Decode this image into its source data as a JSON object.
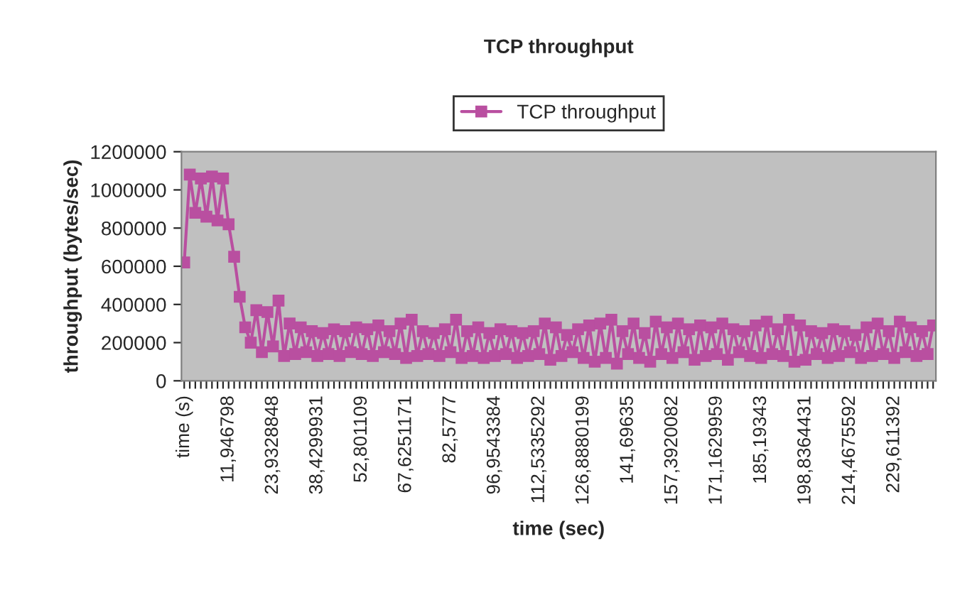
{
  "chart_data": {
    "type": "line",
    "title": "TCP throughput",
    "xlabel": "time (sec)",
    "ylabel": "throughput (bytes/sec)",
    "categories": [
      "time (s)",
      null,
      null,
      null,
      null,
      null,
      null,
      null,
      "11,946798",
      null,
      null,
      null,
      null,
      null,
      null,
      null,
      "23,9328848",
      null,
      null,
      null,
      null,
      null,
      null,
      null,
      "38,4299931",
      null,
      null,
      null,
      null,
      null,
      null,
      null,
      "52,801109",
      null,
      null,
      null,
      null,
      null,
      null,
      null,
      "67,6251171",
      null,
      null,
      null,
      null,
      null,
      null,
      null,
      "82,5777",
      null,
      null,
      null,
      null,
      null,
      null,
      null,
      "96,9543384",
      null,
      null,
      null,
      null,
      null,
      null,
      null,
      "112,5335292",
      null,
      null,
      null,
      null,
      null,
      null,
      null,
      "126,8880199",
      null,
      null,
      null,
      null,
      null,
      null,
      null,
      "141,69635",
      null,
      null,
      null,
      null,
      null,
      null,
      null,
      "157,3920082",
      null,
      null,
      null,
      null,
      null,
      null,
      null,
      "171,1629959",
      null,
      null,
      null,
      null,
      null,
      null,
      null,
      "185,19343",
      null,
      null,
      null,
      null,
      null,
      null,
      null,
      "198,8364431",
      null,
      null,
      null,
      null,
      null,
      null,
      null,
      "214,4675592",
      null,
      null,
      null,
      null,
      null,
      null,
      null,
      "229,611392",
      null,
      null,
      null,
      null,
      null,
      null,
      null
    ],
    "series": [
      {
        "name": "TCP throughput",
        "color": "#b94fa0",
        "values": [
          620000,
          1080000,
          880000,
          1060000,
          860000,
          1070000,
          840000,
          1060000,
          820000,
          650000,
          440000,
          280000,
          200000,
          370000,
          150000,
          360000,
          180000,
          420000,
          130000,
          300000,
          140000,
          280000,
          150000,
          260000,
          130000,
          250000,
          140000,
          270000,
          130000,
          260000,
          150000,
          280000,
          140000,
          270000,
          130000,
          290000,
          150000,
          260000,
          140000,
          300000,
          120000,
          320000,
          130000,
          260000,
          140000,
          250000,
          130000,
          270000,
          150000,
          320000,
          120000,
          260000,
          130000,
          280000,
          120000,
          250000,
          130000,
          270000,
          140000,
          260000,
          120000,
          250000,
          130000,
          260000,
          140000,
          300000,
          110000,
          280000,
          130000,
          240000,
          150000,
          270000,
          120000,
          290000,
          100000,
          300000,
          120000,
          320000,
          90000,
          260000,
          140000,
          300000,
          120000,
          250000,
          100000,
          310000,
          140000,
          280000,
          120000,
          300000,
          150000,
          270000,
          110000,
          290000,
          130000,
          280000,
          140000,
          300000,
          110000,
          270000,
          150000,
          260000,
          130000,
          290000,
          120000,
          310000,
          140000,
          270000,
          130000,
          320000,
          100000,
          290000,
          110000,
          260000,
          140000,
          250000,
          120000,
          270000,
          130000,
          260000,
          150000,
          240000,
          120000,
          280000,
          130000,
          300000,
          140000,
          260000,
          120000,
          310000,
          150000,
          280000,
          130000,
          260000,
          140000,
          290000
        ]
      }
    ],
    "ylim": [
      0,
      1200000
    ],
    "yticks": [
      0,
      200000,
      400000,
      600000,
      800000,
      1000000,
      1200000
    ],
    "grid": false,
    "legend": "top",
    "marker": "square",
    "line_style": "solid"
  }
}
